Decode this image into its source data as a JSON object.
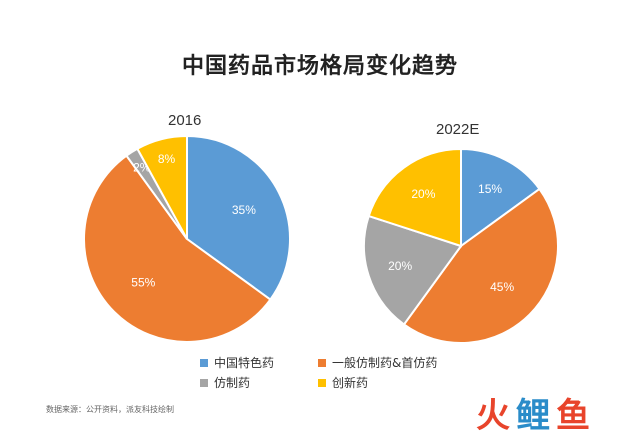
{
  "chart_data": [
    {
      "type": "pie",
      "title": "2016",
      "series": [
        {
          "name": "中国特色药",
          "value": 35,
          "label": "35%"
        },
        {
          "name": "一般仿制药&首仿药",
          "value": 55,
          "label": "55%"
        },
        {
          "name": "仿制药",
          "value": 2,
          "label": "2%"
        },
        {
          "name": "创新药",
          "value": 8,
          "label": "8%"
        }
      ]
    },
    {
      "type": "pie",
      "title": "2022E",
      "series": [
        {
          "name": "中国特色药",
          "value": 15,
          "label": "15%"
        },
        {
          "name": "一般仿制药&首仿药",
          "value": 45,
          "label": "45%"
        },
        {
          "name": "仿制药",
          "value": 20,
          "label": "20%"
        },
        {
          "name": "创新药",
          "value": 20,
          "label": "20%"
        }
      ]
    }
  ],
  "main_title": "中国药品市场格局变化趋势",
  "legend": [
    {
      "label": "中国特色药",
      "color": "#5b9bd5"
    },
    {
      "label": "一般仿制药&首仿药",
      "color": "#ed7d31"
    },
    {
      "label": "仿制药",
      "color": "#a5a5a5"
    },
    {
      "label": "创新药",
      "color": "#ffc000"
    }
  ],
  "colors": [
    "#5b9bd5",
    "#ed7d31",
    "#a5a5a5",
    "#ffc000"
  ],
  "source_text": "数据来源：公开资料，派友科技绘制",
  "watermark": {
    "part1": "火",
    "part2": "鲤",
    "part3": "鱼"
  }
}
